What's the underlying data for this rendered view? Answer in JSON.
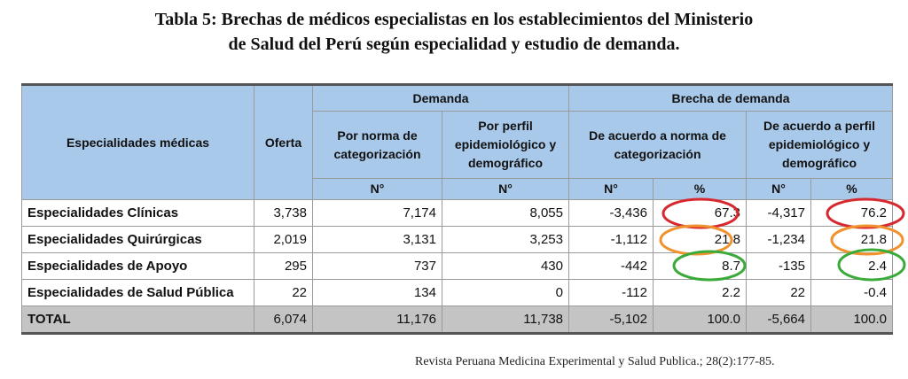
{
  "title": {
    "line1": "Tabla 5: Brechas de médicos especialistas en los establecimientos del Ministerio",
    "line2": "de Salud del Perú según especialidad y estudio de demanda."
  },
  "table": {
    "headers": {
      "especialidades": "Especialidades médicas",
      "oferta": "Oferta",
      "demanda": "Demanda",
      "brecha": "Brecha de demanda",
      "por_norma": "Por norma de categorización",
      "por_perfil": "Por perfil epidemiológico y demográfico",
      "acuerdo_norma": "De acuerdo a norma de categorización",
      "acuerdo_perfil": "De acuerdo a perfil epidemiológico y demográfico",
      "n": "N°",
      "pct": "%"
    },
    "rows": [
      {
        "label": "Especialidades Clínicas",
        "oferta": "3,738",
        "dem_norma": "7,174",
        "dem_perfil": "8,055",
        "br_norma_n": "-3,436",
        "br_norma_pct": "67.3",
        "br_perfil_n": "-4,317",
        "br_perfil_pct": "76.2"
      },
      {
        "label": "Especialidades Quirúrgicas",
        "oferta": "2,019",
        "dem_norma": "3,131",
        "dem_perfil": "3,253",
        "br_norma_n": "-1,112",
        "br_norma_pct": "21.8",
        "br_perfil_n": "-1,234",
        "br_perfil_pct": "21.8"
      },
      {
        "label": "Especialidades de Apoyo",
        "oferta": "295",
        "dem_norma": "737",
        "dem_perfil": "430",
        "br_norma_n": "-442",
        "br_norma_pct": "8.7",
        "br_perfil_n": "-135",
        "br_perfil_pct": "2.4"
      },
      {
        "label": "Especialidades de Salud Pública",
        "oferta": "22",
        "dem_norma": "134",
        "dem_perfil": "0",
        "br_norma_n": "-112",
        "br_norma_pct": "2.2",
        "br_perfil_n": "22",
        "br_perfil_pct": "-0.4"
      }
    ],
    "total": {
      "label": "TOTAL",
      "oferta": "6,074",
      "dem_norma": "11,176",
      "dem_perfil": "11,738",
      "br_norma_n": "-5,102",
      "br_norma_pct": "100.0",
      "br_perfil_n": "-5,664",
      "br_perfil_pct": "100.0"
    }
  },
  "highlight_colors": {
    "row1": "#d7282f",
    "row2": "#f0922e",
    "row3": "#3aab3a"
  },
  "source": "Revista  Peruana Medicina Experimental y Salud Publica.; 28(2):177-85."
}
